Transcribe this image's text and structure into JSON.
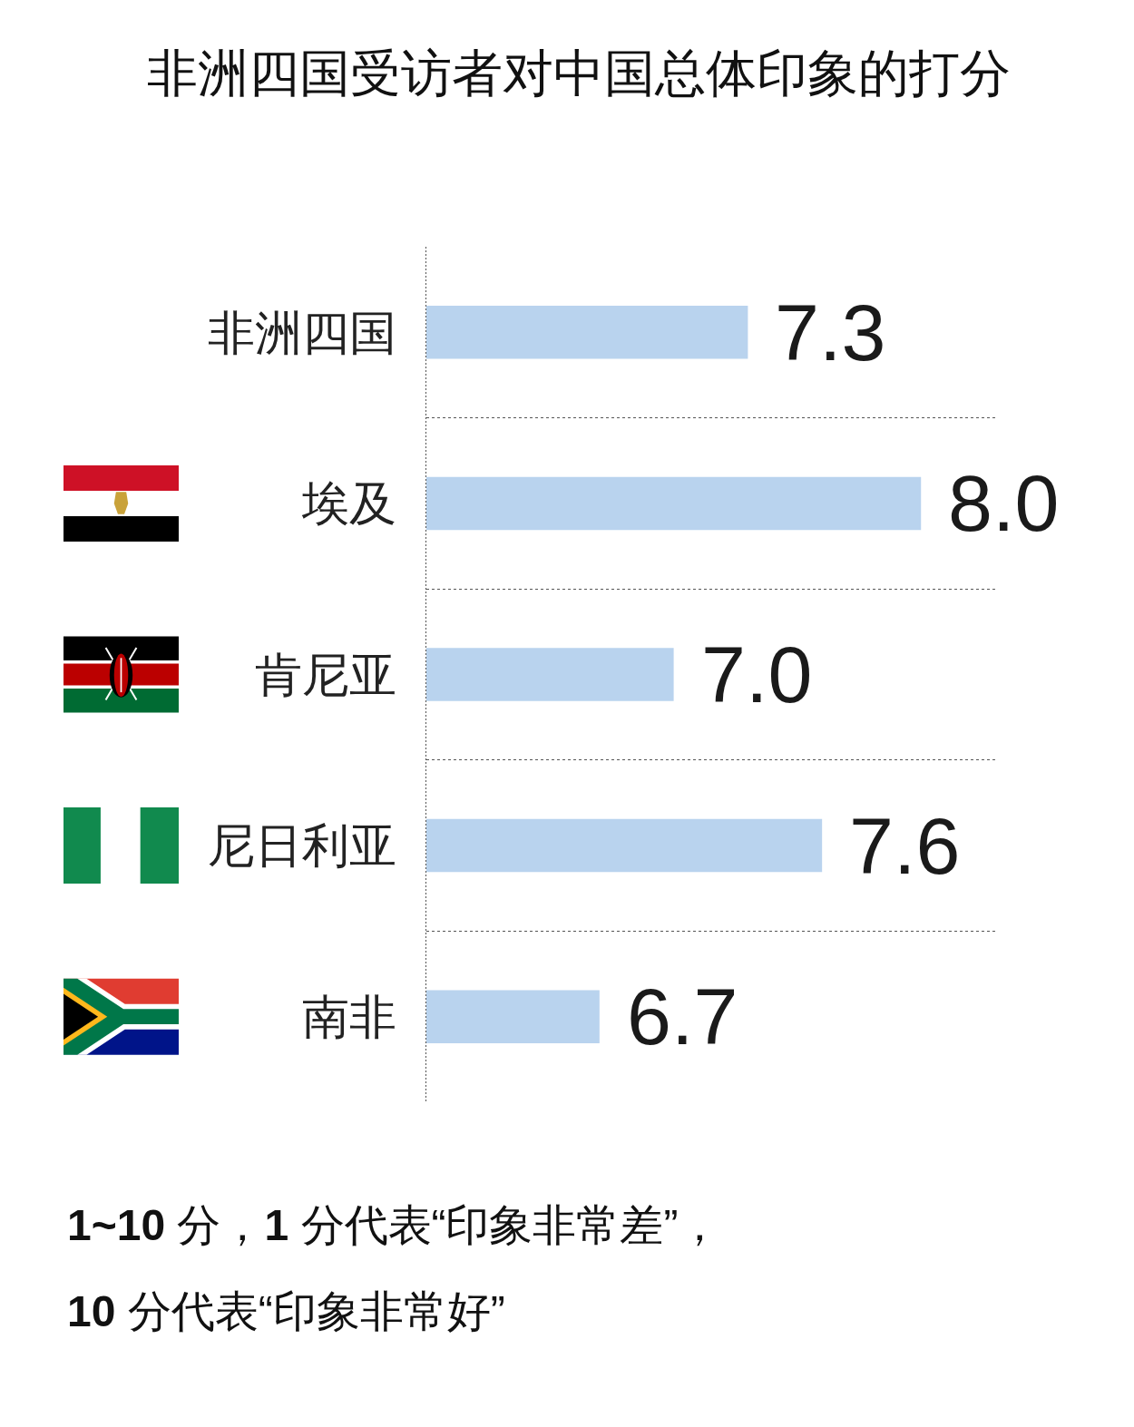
{
  "chart_data": {
    "type": "bar",
    "orientation": "horizontal",
    "title": "非洲四国受访者对中国总体印象的打分",
    "categories": [
      "非洲四国",
      "埃及",
      "肯尼亚",
      "尼日利亚",
      "南非"
    ],
    "values": [
      7.3,
      8.0,
      7.0,
      7.6,
      6.7
    ],
    "value_labels": [
      "7.3",
      "8.0",
      "7.0",
      "7.6",
      "6.7"
    ],
    "color": "#b9d3ee",
    "xlim": [
      6,
      8.3
    ],
    "grid": "y",
    "tick_labels": "y",
    "annotations": [
      "1~10 分，1 分代表“印象非常差”，",
      "10 分代表“印象非常好”"
    ]
  }
}
